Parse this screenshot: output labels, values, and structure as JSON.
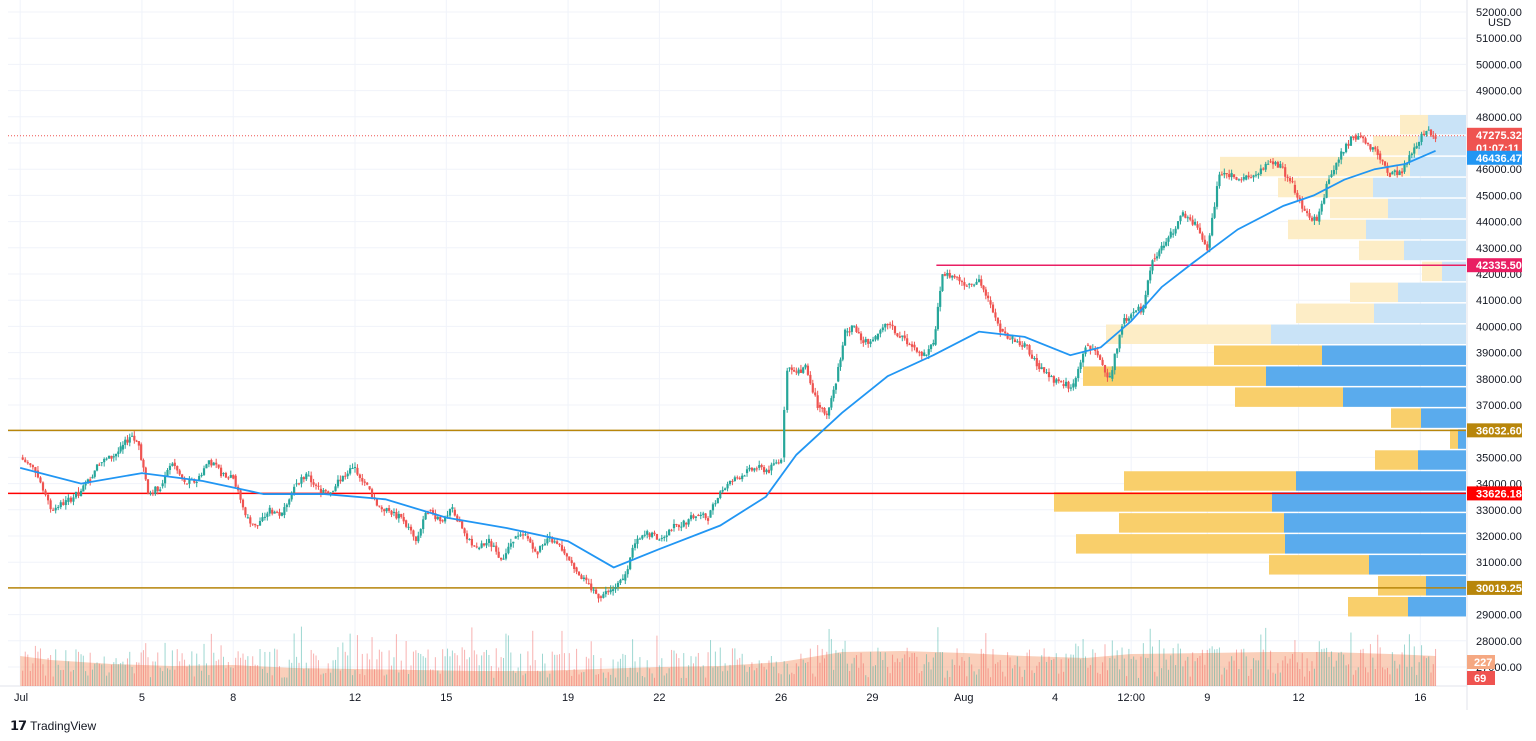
{
  "chart_data": {
    "type": "candlestick",
    "symbol_quote_currency": "USD",
    "price_axis": {
      "ylim": [
        27000,
        52000
      ],
      "ticks": [
        "52000.00",
        "51000.00",
        "50000.00",
        "49000.00",
        "48000.00",
        "47000.00",
        "46000.00",
        "45000.00",
        "44000.00",
        "43000.00",
        "42000.00",
        "41000.00",
        "40000.00",
        "39000.00",
        "38000.00",
        "37000.00",
        "36000.00",
        "35000.00",
        "34000.00",
        "33000.00",
        "32000.00",
        "31000.00",
        "30000.00",
        "29000.00",
        "28000.00",
        "27000.00"
      ],
      "tick_values": [
        52000,
        51000,
        50000,
        49000,
        48000,
        47000,
        46000,
        45000,
        44000,
        43000,
        42000,
        41000,
        40000,
        39000,
        38000,
        37000,
        36000,
        35000,
        34000,
        33000,
        32000,
        31000,
        30000,
        29000,
        28000,
        27000
      ]
    },
    "time_axis": {
      "labels": [
        "Jul",
        "5",
        "8",
        "12",
        "15",
        "19",
        "22",
        "26",
        "29",
        "Aug",
        "4",
        "12:00",
        "9",
        "12",
        "16"
      ],
      "label_days": [
        1,
        5,
        8,
        12,
        15,
        19,
        22,
        26,
        29,
        32,
        35,
        37.5,
        40,
        43,
        47
      ],
      "x_range_days": [
        0.6,
        48.5
      ]
    },
    "candle_points": [
      [
        1.0,
        35000
      ],
      [
        1.5,
        34500
      ],
      [
        2.0,
        33000
      ],
      [
        2.5,
        33300
      ],
      [
        3.0,
        33700
      ],
      [
        3.3,
        34200
      ],
      [
        3.6,
        34800
      ],
      [
        4.0,
        35000
      ],
      [
        4.3,
        35300
      ],
      [
        4.6,
        35800
      ],
      [
        4.9,
        35500
      ],
      [
        5.2,
        33600
      ],
      [
        5.6,
        33900
      ],
      [
        6.0,
        34800
      ],
      [
        6.4,
        34000
      ],
      [
        6.8,
        34100
      ],
      [
        7.2,
        34900
      ],
      [
        7.6,
        34400
      ],
      [
        8.0,
        34300
      ],
      [
        8.4,
        32700
      ],
      [
        8.8,
        32400
      ],
      [
        9.2,
        33000
      ],
      [
        9.6,
        32800
      ],
      [
        10.0,
        34000
      ],
      [
        10.4,
        34300
      ],
      [
        10.8,
        33800
      ],
      [
        11.2,
        33700
      ],
      [
        11.6,
        34300
      ],
      [
        12.0,
        34600
      ],
      [
        12.4,
        33900
      ],
      [
        12.8,
        33100
      ],
      [
        13.2,
        32900
      ],
      [
        13.6,
        32600
      ],
      [
        14.0,
        31800
      ],
      [
        14.4,
        33000
      ],
      [
        14.8,
        32600
      ],
      [
        15.2,
        33000
      ],
      [
        15.6,
        32100
      ],
      [
        16.0,
        31500
      ],
      [
        16.4,
        31800
      ],
      [
        16.8,
        31100
      ],
      [
        17.2,
        31900
      ],
      [
        17.6,
        32000
      ],
      [
        18.0,
        31400
      ],
      [
        18.4,
        31900
      ],
      [
        18.8,
        31500
      ],
      [
        19.2,
        30800
      ],
      [
        19.6,
        30200
      ],
      [
        20.0,
        29700
      ],
      [
        20.4,
        29900
      ],
      [
        20.8,
        30300
      ],
      [
        21.2,
        31700
      ],
      [
        21.6,
        32100
      ],
      [
        22.0,
        31900
      ],
      [
        22.4,
        32300
      ],
      [
        22.8,
        32500
      ],
      [
        23.2,
        32800
      ],
      [
        23.6,
        32700
      ],
      [
        24.0,
        33700
      ],
      [
        24.4,
        34100
      ],
      [
        24.8,
        34400
      ],
      [
        25.2,
        34600
      ],
      [
        25.6,
        34500
      ],
      [
        26.0,
        35000
      ],
      [
        26.2,
        38400
      ],
      [
        26.5,
        38200
      ],
      [
        26.8,
        38500
      ],
      [
        27.2,
        37000
      ],
      [
        27.5,
        36600
      ],
      [
        27.8,
        37900
      ],
      [
        28.1,
        39800
      ],
      [
        28.4,
        40000
      ],
      [
        28.7,
        39400
      ],
      [
        29.1,
        39500
      ],
      [
        29.5,
        40100
      ],
      [
        29.9,
        39600
      ],
      [
        30.3,
        39300
      ],
      [
        30.7,
        38900
      ],
      [
        31.0,
        39300
      ],
      [
        31.3,
        42000
      ],
      [
        31.7,
        41900
      ],
      [
        32.1,
        41600
      ],
      [
        32.5,
        41800
      ],
      [
        32.8,
        41000
      ],
      [
        33.2,
        39900
      ],
      [
        33.6,
        39500
      ],
      [
        34.0,
        39300
      ],
      [
        34.4,
        38600
      ],
      [
        34.8,
        38100
      ],
      [
        35.2,
        37800
      ],
      [
        35.6,
        37700
      ],
      [
        36.0,
        39300
      ],
      [
        36.4,
        38900
      ],
      [
        36.8,
        38000
      ],
      [
        37.2,
        40100
      ],
      [
        37.5,
        40500
      ],
      [
        37.9,
        40700
      ],
      [
        38.2,
        42600
      ],
      [
        38.5,
        43000
      ],
      [
        38.8,
        43500
      ],
      [
        39.2,
        44300
      ],
      [
        39.6,
        43900
      ],
      [
        40.0,
        43000
      ],
      [
        40.4,
        45800
      ],
      [
        40.8,
        45800
      ],
      [
        41.2,
        45600
      ],
      [
        41.6,
        45800
      ],
      [
        42.0,
        46300
      ],
      [
        42.4,
        46100
      ],
      [
        42.8,
        45400
      ],
      [
        43.2,
        44400
      ],
      [
        43.6,
        44000
      ],
      [
        44.0,
        45700
      ],
      [
        44.4,
        46600
      ],
      [
        44.8,
        47300
      ],
      [
        45.2,
        47000
      ],
      [
        45.6,
        46600
      ],
      [
        46.0,
        45800
      ],
      [
        46.4,
        45900
      ],
      [
        46.8,
        46800
      ],
      [
        47.2,
        47500
      ],
      [
        47.5,
        47275
      ]
    ],
    "series": [
      {
        "name": "MA",
        "color": "#2196f3",
        "points": [
          [
            1,
            34600
          ],
          [
            3,
            34000
          ],
          [
            5,
            34400
          ],
          [
            7,
            34100
          ],
          [
            9,
            33600
          ],
          [
            11,
            33600
          ],
          [
            13,
            33400
          ],
          [
            15,
            32700
          ],
          [
            17,
            32300
          ],
          [
            19,
            31800
          ],
          [
            20.5,
            30800
          ],
          [
            22,
            31500
          ],
          [
            24,
            32400
          ],
          [
            25.5,
            33500
          ],
          [
            26.5,
            35100
          ],
          [
            28,
            36700
          ],
          [
            29.5,
            38100
          ],
          [
            31,
            38900
          ],
          [
            32.5,
            39800
          ],
          [
            34,
            39600
          ],
          [
            35.5,
            38900
          ],
          [
            36.5,
            39200
          ],
          [
            37.5,
            40200
          ],
          [
            38.5,
            41500
          ],
          [
            39.5,
            42400
          ],
          [
            41,
            43700
          ],
          [
            42.5,
            44600
          ],
          [
            43.5,
            45000
          ],
          [
            44.5,
            45600
          ],
          [
            45.5,
            46000
          ],
          [
            46.5,
            46200
          ],
          [
            47.5,
            46700
          ]
        ]
      }
    ],
    "volume_overlay": {
      "points": [
        [
          1,
          30
        ],
        [
          2,
          26
        ],
        [
          4,
          22
        ],
        [
          6,
          20
        ],
        [
          8,
          21
        ],
        [
          10,
          18
        ],
        [
          12,
          17
        ],
        [
          14,
          16
        ],
        [
          16,
          15
        ],
        [
          18,
          15
        ],
        [
          20,
          17
        ],
        [
          22,
          19
        ],
        [
          24,
          20
        ],
        [
          26,
          24
        ],
        [
          28,
          34
        ],
        [
          30,
          35
        ],
        [
          32,
          33
        ],
        [
          34,
          30
        ],
        [
          36,
          28
        ],
        [
          37.5,
          32
        ],
        [
          40,
          33
        ],
        [
          42,
          34
        ],
        [
          44,
          34
        ],
        [
          46,
          32
        ],
        [
          47.5,
          30
        ]
      ],
      "color": "#f5a882"
    },
    "volume_profile": [
      {
        "price": 47700,
        "buy": 28,
        "sell": 38
      },
      {
        "price": 46900,
        "buy": 45,
        "sell": 48
      },
      {
        "price": 46100,
        "buy": 190,
        "sell": 56
      },
      {
        "price": 45300,
        "buy": 95,
        "sell": 93
      },
      {
        "price": 44500,
        "buy": 58,
        "sell": 78
      },
      {
        "price": 43700,
        "buy": 78,
        "sell": 100
      },
      {
        "price": 42900,
        "buy": 45,
        "sell": 62
      },
      {
        "price": 42100,
        "buy": 20,
        "sell": 24
      },
      {
        "price": 41300,
        "buy": 48,
        "sell": 68
      },
      {
        "price": 40500,
        "buy": 78,
        "sell": 92
      },
      {
        "price": 39700,
        "buy": 165,
        "sell": 195
      },
      {
        "price": 38900,
        "buy": 108,
        "sell": 144
      },
      {
        "price": 38100,
        "buy": 183,
        "sell": 200
      },
      {
        "price": 37300,
        "buy": 108,
        "sell": 123
      },
      {
        "price": 36500,
        "buy": 30,
        "sell": 45
      },
      {
        "price": 35700,
        "buy": 8,
        "sell": 8
      },
      {
        "price": 34900,
        "buy": 43,
        "sell": 48
      },
      {
        "price": 34100,
        "buy": 172,
        "sell": 170
      },
      {
        "price": 33300,
        "buy": 218,
        "sell": 194
      },
      {
        "price": 32500,
        "buy": 165,
        "sell": 182
      },
      {
        "price": 31700,
        "buy": 209,
        "sell": 181
      },
      {
        "price": 30900,
        "buy": 100,
        "sell": 97
      },
      {
        "price": 30100,
        "buy": 48,
        "sell": 40
      },
      {
        "price": 29300,
        "buy": 60,
        "sell": 58
      }
    ],
    "horizontal_levels": [
      {
        "label": "42335.50",
        "price": 42335.5,
        "color": "#e91e63"
      },
      {
        "label": "36032.60",
        "price": 36032.6,
        "color": "#b8860b"
      },
      {
        "label": "33626.18",
        "price": 33626.18,
        "color": "#ff0000"
      },
      {
        "label": "30019.25",
        "price": 30019.25,
        "color": "#b8860b"
      }
    ],
    "price_badges": [
      {
        "text": "47275.32",
        "price": 47275.32,
        "color": "#ef5350"
      },
      {
        "text": "01:07:11",
        "price": 46900,
        "color": "#ef5350"
      },
      {
        "text": "46436.47",
        "price": 46436.47,
        "color": "#2196f3"
      }
    ],
    "volume_badges": [
      {
        "text": "227",
        "color": "#f5a882"
      },
      {
        "text": "69",
        "color": "#ef5350"
      }
    ],
    "colors": {
      "up": "#26a69a",
      "down": "#ef5350",
      "current_price_line": "#ef5350",
      "grid": "#f0f3fa",
      "vp_up_light": "#fdedc6",
      "vp_up": "#f9cf6b",
      "vp_down_light": "#c9e3f7",
      "vp_down": "#5aabed"
    }
  },
  "brand": {
    "name": "TradingView",
    "icon": "tradingview-logo"
  }
}
